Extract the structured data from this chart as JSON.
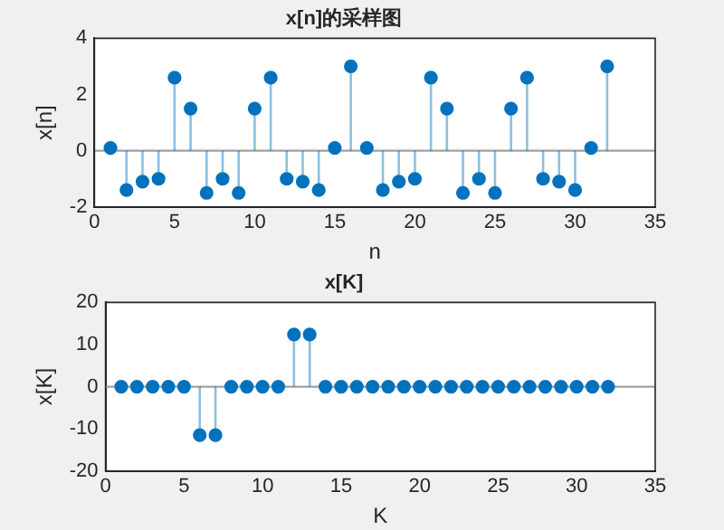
{
  "chart_data": [
    {
      "type": "lollipop",
      "title": "x[n]的采样图",
      "xlabel": "n",
      "ylabel": "x[n]",
      "x": [
        1,
        2,
        3,
        4,
        5,
        6,
        7,
        8,
        9,
        10,
        11,
        12,
        13,
        14,
        15,
        16,
        17,
        18,
        19,
        20,
        21,
        22,
        23,
        24,
        25,
        26,
        27,
        28,
        29,
        30,
        31,
        32
      ],
      "series": [
        {
          "color": "#0072bd",
          "values": [
            0.1,
            -1.4,
            -1.1,
            -1.0,
            2.6,
            1.5,
            -1.5,
            -1.0,
            -1.5,
            1.5,
            2.6,
            -1.0,
            -1.1,
            -1.4,
            0.1,
            3.0,
            0.1,
            -1.4,
            -1.1,
            -1.0,
            2.6,
            1.5,
            -1.5,
            -1.0,
            -1.5,
            1.5,
            2.6,
            -1.0,
            -1.1,
            -1.4,
            0.1,
            3.0
          ]
        }
      ],
      "xlim": [
        0,
        35
      ],
      "xticks": [
        0,
        5,
        10,
        15,
        20,
        25,
        30,
        35
      ],
      "ylim": [
        -2,
        4
      ],
      "yticks": [
        -2,
        0,
        2,
        4
      ],
      "marker": "circle",
      "grid": false,
      "legend": false,
      "ref_lines": [
        {
          "axis": "y",
          "value": 0,
          "color": "#a0a0a0"
        }
      ]
    },
    {
      "type": "lollipop",
      "title": "x[K]",
      "xlabel": "K",
      "ylabel": "x[K]",
      "x": [
        1,
        2,
        3,
        4,
        5,
        6,
        7,
        8,
        9,
        10,
        11,
        12,
        13,
        14,
        15,
        16,
        17,
        18,
        19,
        20,
        21,
        22,
        23,
        24,
        25,
        26,
        27,
        28,
        29,
        30,
        31,
        32
      ],
      "series": [
        {
          "color": "#0072bd",
          "values": [
            0,
            0,
            0,
            0,
            0,
            -11.5,
            -11.5,
            0,
            0,
            0,
            0,
            12.4,
            12.4,
            0,
            0,
            0,
            0,
            0,
            0,
            0,
            0,
            0,
            0,
            0,
            0,
            0,
            0,
            0,
            0,
            0,
            0,
            0
          ]
        }
      ],
      "xlim": [
        0,
        35
      ],
      "xticks": [
        0,
        5,
        10,
        15,
        20,
        25,
        30,
        35
      ],
      "ylim": [
        -20,
        20
      ],
      "yticks": [
        -20,
        -10,
        0,
        10,
        20
      ],
      "marker": "circle",
      "grid": false,
      "legend": false,
      "ref_lines": [
        {
          "axis": "y",
          "value": 0,
          "color": "#a0a0a0"
        }
      ]
    }
  ]
}
